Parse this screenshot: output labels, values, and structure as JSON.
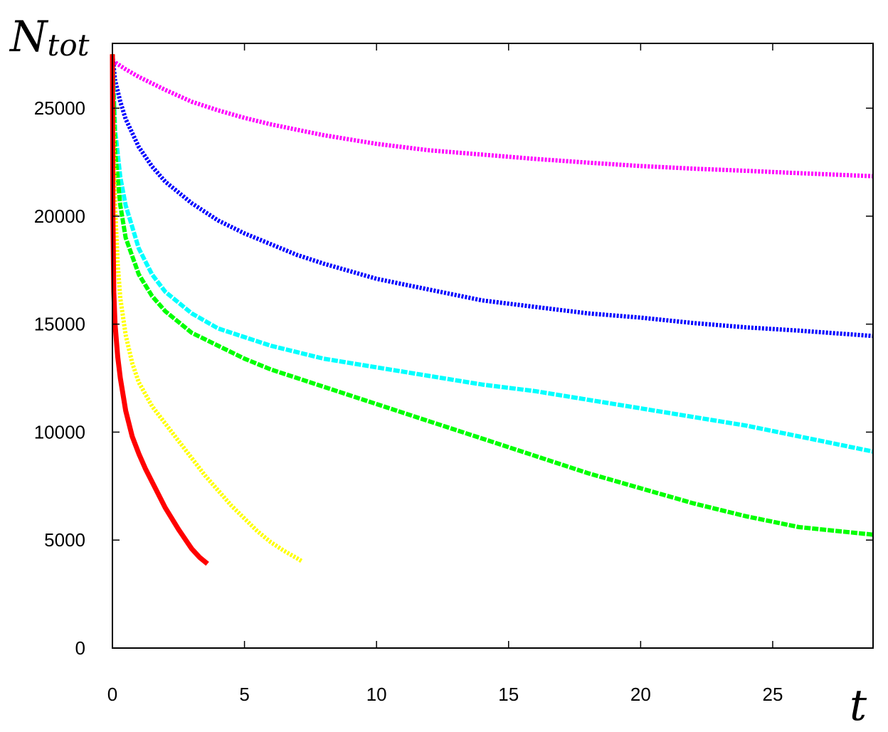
{
  "chart_data": {
    "type": "line",
    "title": "",
    "ylabel": "N",
    "ylabel_subscript": "tot",
    "xlabel": "t",
    "xlim": [
      0,
      28.8
    ],
    "ylim": [
      0,
      28000
    ],
    "xticks": [
      0,
      5,
      10,
      15,
      20,
      25
    ],
    "yticks": [
      0,
      5000,
      10000,
      15000,
      20000,
      25000
    ],
    "grid": false,
    "legend": "none",
    "series": [
      {
        "color": "#ff00ff",
        "style": "dotted",
        "x": [
          0,
          0.5,
          1,
          1.5,
          2,
          3,
          4,
          5,
          6,
          7,
          8,
          10,
          12,
          14,
          16,
          18,
          20,
          22,
          24,
          26,
          28.8
        ],
        "y": [
          27200,
          26800,
          26450,
          26150,
          25850,
          25300,
          24900,
          24550,
          24250,
          24000,
          23750,
          23350,
          23050,
          22850,
          22650,
          22480,
          22320,
          22200,
          22100,
          21990,
          21850
        ]
      },
      {
        "color": "#0000ff",
        "style": "dotted",
        "x": [
          0,
          0.1,
          0.3,
          0.5,
          1,
          1.5,
          2,
          3,
          4,
          5,
          6,
          7,
          8,
          10,
          12,
          14,
          16,
          18,
          20,
          22,
          24,
          26,
          28.8
        ],
        "y": [
          27500,
          26300,
          25300,
          24500,
          23200,
          22300,
          21600,
          20600,
          19800,
          19200,
          18700,
          18200,
          17800,
          17100,
          16600,
          16100,
          15800,
          15500,
          15300,
          15050,
          14850,
          14700,
          14450
        ]
      },
      {
        "color": "#00ffff",
        "style": "dashed",
        "x": [
          0,
          0.1,
          0.3,
          0.5,
          1,
          1.5,
          2,
          3,
          4,
          5,
          6,
          7,
          8,
          10,
          12,
          14,
          16,
          18,
          20,
          22,
          24,
          26,
          28.8
        ],
        "y": [
          27500,
          24000,
          21800,
          20500,
          18500,
          17300,
          16500,
          15500,
          14800,
          14400,
          14000,
          13700,
          13400,
          13000,
          12600,
          12200,
          11900,
          11500,
          11100,
          10700,
          10300,
          9800,
          9100
        ]
      },
      {
        "color": "#00ff00",
        "style": "dashed",
        "x": [
          0,
          0.1,
          0.3,
          0.5,
          1,
          1.5,
          2,
          3,
          4,
          5,
          6,
          7,
          8,
          10,
          12,
          14,
          16,
          18,
          20,
          22,
          24,
          26,
          28.8
        ],
        "y": [
          27500,
          23000,
          20500,
          19000,
          17300,
          16300,
          15600,
          14600,
          14000,
          13400,
          12900,
          12500,
          12100,
          11300,
          10500,
          9700,
          8900,
          8100,
          7400,
          6700,
          6100,
          5600,
          5250
        ]
      },
      {
        "color": "#ffff00",
        "style": "dotted",
        "x": [
          0,
          0.05,
          0.1,
          0.2,
          0.3,
          0.5,
          0.75,
          1,
          1.5,
          2,
          2.5,
          3,
          3.5,
          4,
          4.5,
          5,
          5.5,
          6,
          6.5,
          7,
          7.2
        ],
        "y": [
          27500,
          23000,
          20500,
          17800,
          16200,
          14500,
          13200,
          12300,
          11200,
          10400,
          9600,
          8800,
          8000,
          7300,
          6600,
          6000,
          5400,
          4900,
          4500,
          4150,
          4000
        ]
      },
      {
        "color": "#ff0000",
        "style": "solid",
        "x": [
          0,
          0.02,
          0.05,
          0.1,
          0.2,
          0.3,
          0.5,
          0.75,
          1,
          1.25,
          1.5,
          2,
          2.5,
          3,
          3.3,
          3.6
        ],
        "y": [
          27500,
          20000,
          16500,
          15000,
          13500,
          12500,
          11000,
          9800,
          9000,
          8300,
          7700,
          6500,
          5500,
          4600,
          4200,
          3900
        ]
      }
    ]
  }
}
